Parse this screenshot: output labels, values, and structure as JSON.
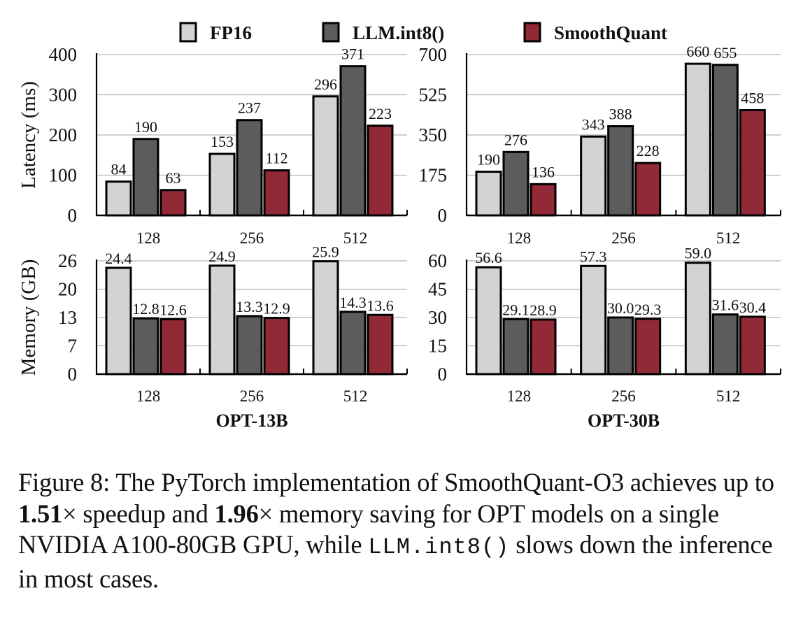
{
  "chart_data": [
    {
      "type": "bar",
      "panel": "top-left",
      "model": "OPT-13B",
      "metric": "latency",
      "ylabel": "Latency (ms)",
      "xlabel": "",
      "categories": [
        "128",
        "256",
        "512"
      ],
      "ylim": [
        0,
        400
      ],
      "yticks": [
        0,
        100,
        200,
        300,
        400
      ],
      "grid": true,
      "series": [
        {
          "name": "FP16",
          "values": [
            84,
            153,
            296
          ],
          "labels": [
            "84",
            "153",
            "296"
          ]
        },
        {
          "name": "LLM.int8()",
          "values": [
            190,
            237,
            371
          ],
          "labels": [
            "190",
            "237",
            "371"
          ]
        },
        {
          "name": "SmoothQuant",
          "values": [
            63,
            112,
            223
          ],
          "labels": [
            "63",
            "112",
            "223"
          ]
        }
      ]
    },
    {
      "type": "bar",
      "panel": "top-right",
      "model": "OPT-30B",
      "metric": "latency",
      "ylabel": "",
      "xlabel": "",
      "categories": [
        "128",
        "256",
        "512"
      ],
      "ylim": [
        0,
        700
      ],
      "yticks": [
        0,
        175,
        350,
        525,
        700
      ],
      "grid": true,
      "series": [
        {
          "name": "FP16",
          "values": [
            190,
            343,
            660
          ],
          "labels": [
            "190",
            "343",
            "660"
          ]
        },
        {
          "name": "LLM.int8()",
          "values": [
            276,
            388,
            655
          ],
          "labels": [
            "276",
            "388",
            "655"
          ]
        },
        {
          "name": "SmoothQuant",
          "values": [
            136,
            228,
            458
          ],
          "labels": [
            "136",
            "228",
            "458"
          ]
        }
      ]
    },
    {
      "type": "bar",
      "panel": "bottom-left",
      "model": "OPT-13B",
      "metric": "memory",
      "ylabel": "Memory (GB)",
      "xlabel": "OPT-13B",
      "categories": [
        "128",
        "256",
        "512"
      ],
      "ylim": [
        0,
        26
      ],
      "yticks": [
        0,
        6.5,
        13,
        19.5,
        26
      ],
      "ytick_labels": [
        "0",
        "7",
        "13",
        "20",
        "26"
      ],
      "grid": true,
      "series": [
        {
          "name": "FP16",
          "values": [
            24.4,
            24.9,
            25.9
          ],
          "labels": [
            "24.4",
            "24.9",
            "25.9"
          ]
        },
        {
          "name": "LLM.int8()",
          "values": [
            12.8,
            13.3,
            14.3
          ],
          "labels": [
            "12.8",
            "13.3",
            "14.3"
          ]
        },
        {
          "name": "SmoothQuant",
          "values": [
            12.6,
            12.9,
            13.6
          ],
          "labels": [
            "12.6",
            "12.9",
            "13.6"
          ]
        }
      ]
    },
    {
      "type": "bar",
      "panel": "bottom-right",
      "model": "OPT-30B",
      "metric": "memory",
      "ylabel": "",
      "xlabel": "OPT-30B",
      "categories": [
        "128",
        "256",
        "512"
      ],
      "ylim": [
        0,
        60
      ],
      "yticks": [
        0,
        15,
        30,
        45,
        60
      ],
      "ytick_labels": [
        "0",
        "15",
        "30",
        "45",
        "60"
      ],
      "grid": true,
      "series": [
        {
          "name": "FP16",
          "values": [
            56.6,
            57.3,
            59.0
          ],
          "labels": [
            "56.6",
            "57.3",
            "59.0"
          ]
        },
        {
          "name": "LLM.int8()",
          "values": [
            29.1,
            30.0,
            31.6
          ],
          "labels": [
            "29.1",
            "30.0",
            "31.6"
          ]
        },
        {
          "name": "SmoothQuant",
          "values": [
            28.9,
            29.3,
            30.4
          ],
          "labels": [
            "28.9",
            "29.3",
            "30.4"
          ]
        }
      ]
    }
  ],
  "legend": {
    "placement": "top",
    "items": [
      {
        "name": "FP16",
        "color": "#d3d3d3"
      },
      {
        "name": "LLM.int8()",
        "color": "#5c5c5c"
      },
      {
        "name": "SmoothQuant",
        "color": "#922937"
      }
    ]
  },
  "caption": {
    "prefix": "Figure 8: The PyTorch implementation of SmoothQuant-O3 achieves up to ",
    "speedup": "1.51",
    "speedup_suffix": "× speedup and ",
    "memory": "1.96",
    "memory_suffix": "× memory saving for OPT models on a single NVIDIA A100-80GB GPU, while ",
    "code": "LLM.int8()",
    "suffix": " slows down the inference in most cases."
  }
}
